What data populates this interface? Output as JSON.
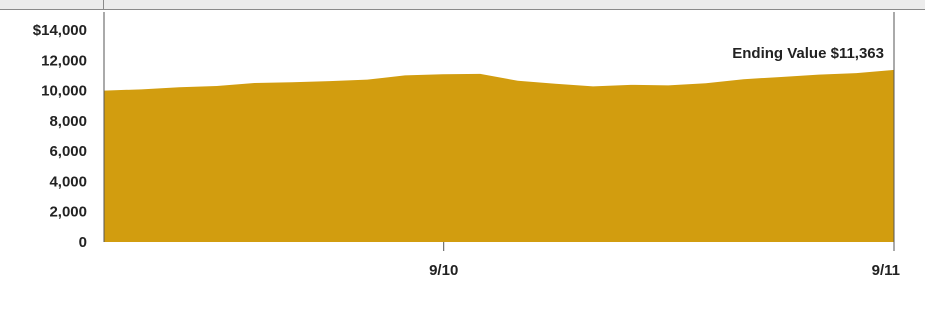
{
  "chart_data": {
    "type": "area",
    "title": "",
    "xlabel": "",
    "ylabel": "",
    "ylim": [
      0,
      14000
    ],
    "y_ticks": [
      0,
      2000,
      4000,
      6000,
      8000,
      10000,
      12000,
      14000
    ],
    "y_tick_labels": [
      "0",
      "2,000",
      "4,000",
      "6,000",
      "8,000",
      "10,000",
      "12,000",
      "$14,000"
    ],
    "x_tick_labels": [
      "9/10",
      "9/11"
    ],
    "x_tick_positions": [
      0.43,
      1.0
    ],
    "series": [
      {
        "values": [
          10000,
          10080,
          10220,
          10300,
          10500,
          10550,
          10620,
          10720,
          11000,
          11080,
          11100,
          10650,
          10450,
          10280,
          10380,
          10340,
          10480,
          10750,
          10900,
          11050,
          11150,
          11363
        ],
        "color": "#D29D0F"
      }
    ],
    "annotation": "Ending Value $11,363",
    "grid": false,
    "legend": "none"
  },
  "colors": {
    "area_fill": "#D29D0F",
    "axis": "#555555",
    "text": "#222222",
    "top_bar": "#ececec"
  }
}
